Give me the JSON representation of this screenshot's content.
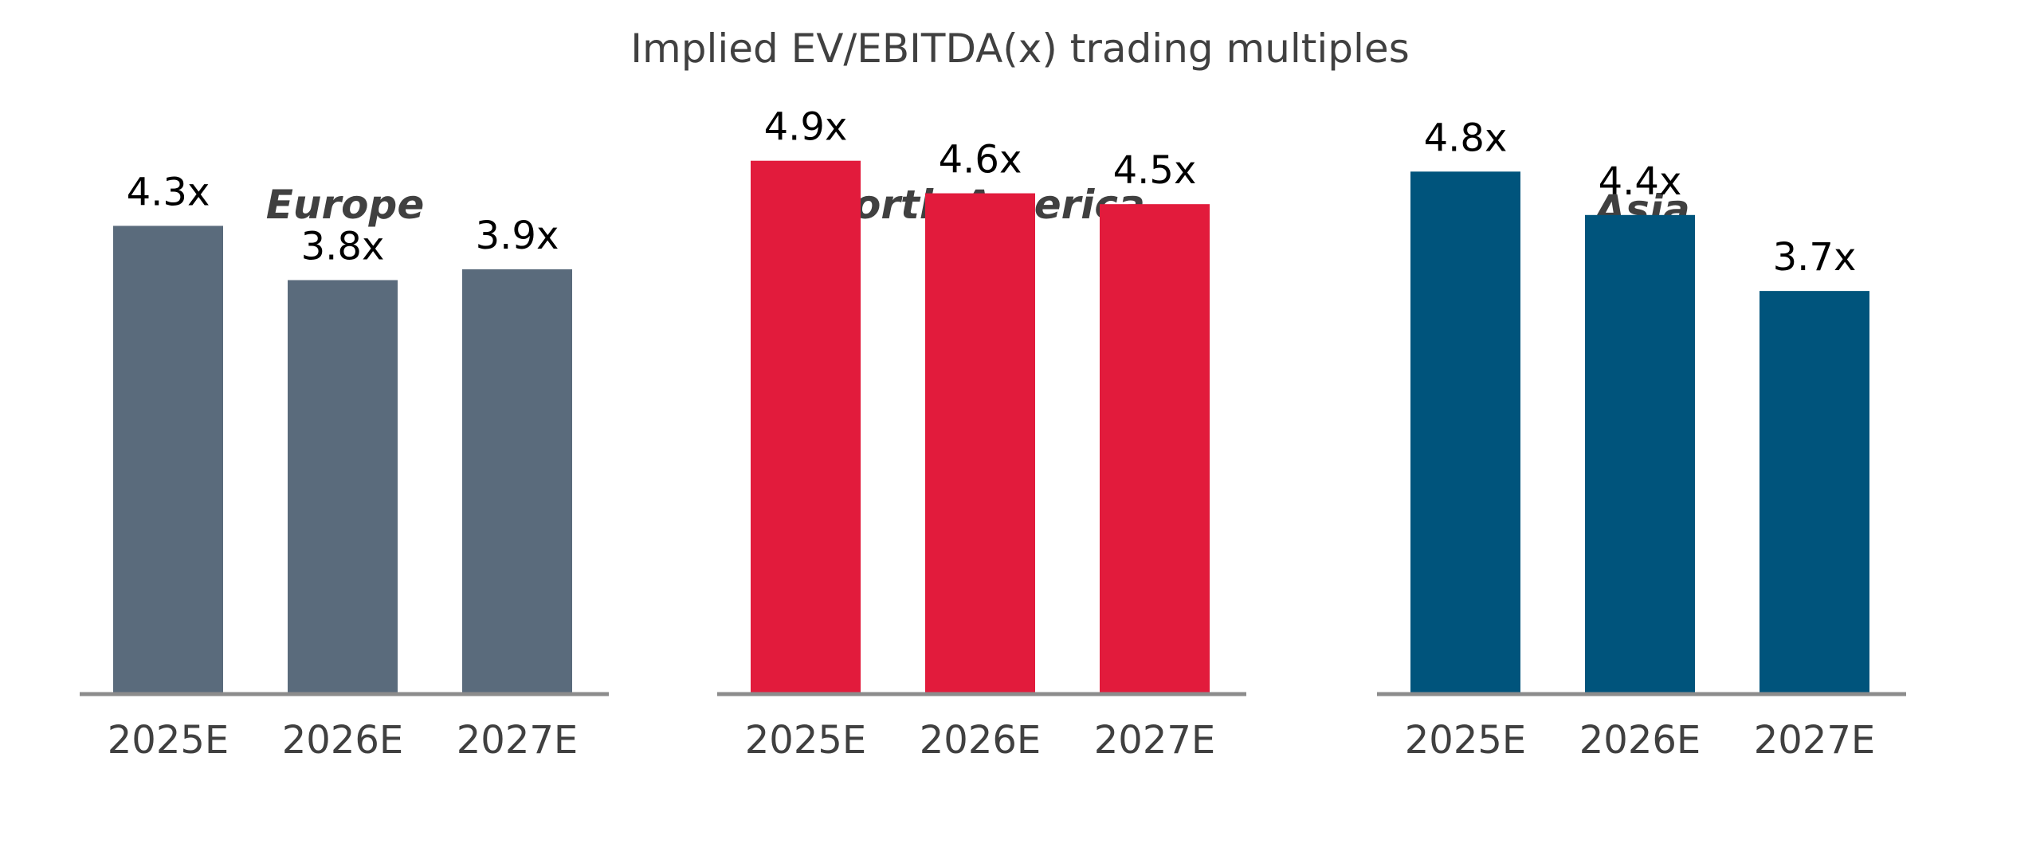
{
  "title": "Implied EV/EBITDA(x) trading multiples",
  "chart_data": [
    {
      "type": "bar",
      "title": "Europe",
      "categories": [
        "2025E",
        "2026E",
        "2027E"
      ],
      "values": [
        4.3,
        3.8,
        3.9
      ],
      "labels": [
        "4.3x",
        "3.8x",
        "3.9x"
      ],
      "color": "#5a6b7c",
      "ylim": [
        0,
        5.5
      ],
      "grid": false
    },
    {
      "type": "bar",
      "title": "North America",
      "categories": [
        "2025E",
        "2026E",
        "2027E"
      ],
      "values": [
        4.9,
        4.6,
        4.5
      ],
      "labels": [
        "4.9x",
        "4.6x",
        "4.5x"
      ],
      "color": "#e21b3c",
      "ylim": [
        0,
        5.5
      ],
      "grid": false
    },
    {
      "type": "bar",
      "title": "Asia",
      "categories": [
        "2025E",
        "2026E",
        "2027E"
      ],
      "values": [
        4.8,
        4.4,
        3.7
      ],
      "labels": [
        "4.8x",
        "4.4x",
        "3.7x"
      ],
      "color": "#00547c",
      "ylim": [
        0,
        5.5
      ],
      "grid": false
    }
  ]
}
